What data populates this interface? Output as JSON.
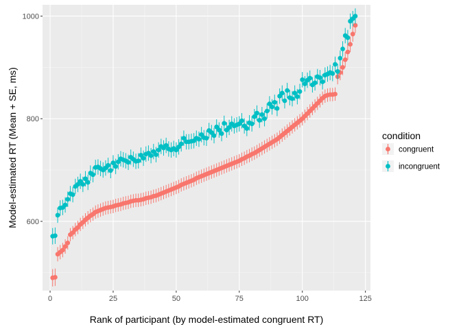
{
  "chart_data": {
    "type": "scatter",
    "xlabel": "Rank of participant (by model-estimated congruent RT)",
    "ylabel": "Model-estimated RT (Mean + SE, ms)",
    "xlim": [
      -3,
      127
    ],
    "ylim": [
      465,
      1022
    ],
    "x_ticks": [
      0,
      25,
      50,
      75,
      100,
      125
    ],
    "y_ticks": [
      600,
      800,
      1000
    ],
    "x_tick_labels": [
      "0",
      "25",
      "50",
      "75",
      "100",
      "125"
    ],
    "y_tick_labels": [
      "600",
      "800",
      "1000"
    ],
    "grid": true,
    "legend_position": "right",
    "legend_title": "condition",
    "colors": {
      "panel_bg": "#ebebeb",
      "grid_major": "#ffffff",
      "grid_minor": "#f5f5f5"
    },
    "series": [
      {
        "name": "congruent",
        "color": "#F8766D",
        "x": [
          1,
          2,
          3,
          4,
          5,
          6,
          7,
          8,
          9,
          10,
          11,
          12,
          13,
          14,
          15,
          16,
          17,
          18,
          19,
          20,
          21,
          22,
          23,
          24,
          25,
          26,
          27,
          28,
          29,
          30,
          31,
          32,
          33,
          34,
          35,
          36,
          37,
          38,
          39,
          40,
          41,
          42,
          43,
          44,
          45,
          46,
          47,
          48,
          49,
          50,
          51,
          52,
          53,
          54,
          55,
          56,
          57,
          58,
          59,
          60,
          61,
          62,
          63,
          64,
          65,
          66,
          67,
          68,
          69,
          70,
          71,
          72,
          73,
          74,
          75,
          76,
          77,
          78,
          79,
          80,
          81,
          82,
          83,
          84,
          85,
          86,
          87,
          88,
          89,
          90,
          91,
          92,
          93,
          94,
          95,
          96,
          97,
          98,
          99,
          100,
          101,
          102,
          103,
          104,
          105,
          106,
          107,
          108,
          109,
          110,
          111,
          112,
          113,
          114,
          115,
          116,
          117,
          118,
          119,
          120,
          121
        ],
        "y": [
          490,
          491,
          536,
          540,
          544,
          551,
          558,
          574,
          578,
          584,
          588,
          594,
          598,
          603,
          607,
          611,
          614,
          618,
          620,
          622,
          624,
          626,
          627,
          628,
          629,
          631,
          632,
          633,
          635,
          636,
          637,
          639,
          640,
          641,
          641,
          642,
          643,
          645,
          646,
          647,
          649,
          650,
          652,
          654,
          656,
          658,
          660,
          662,
          664,
          666,
          668,
          671,
          673,
          675,
          677,
          679,
          681,
          684,
          686,
          688,
          690,
          692,
          694,
          696,
          698,
          700,
          702,
          704,
          706,
          708,
          710,
          712,
          714,
          716,
          718,
          721,
          723,
          726,
          728,
          731,
          733,
          736,
          739,
          742,
          745,
          748,
          751,
          754,
          757,
          760,
          764,
          768,
          772,
          776,
          780,
          784,
          788,
          792,
          796,
          800,
          805,
          810,
          815,
          820,
          825,
          830,
          835,
          840,
          844,
          846,
          847,
          847,
          848,
          882,
          890,
          900,
          915,
          930,
          945,
          965,
          982
        ],
        "se": [
          17,
          17,
          14,
          14,
          14,
          14,
          13,
          13,
          13,
          13,
          13,
          13,
          13,
          13,
          13,
          13,
          13,
          13,
          13,
          13,
          13,
          13,
          13,
          13,
          13,
          13,
          13,
          13,
          13,
          13,
          13,
          13,
          13,
          13,
          13,
          13,
          13,
          13,
          13,
          13,
          13,
          13,
          13,
          13,
          13,
          13,
          13,
          13,
          13,
          13,
          13,
          13,
          13,
          13,
          13,
          13,
          13,
          13,
          13,
          13,
          13,
          13,
          13,
          13,
          13,
          13,
          13,
          13,
          13,
          13,
          13,
          13,
          13,
          13,
          13,
          13,
          13,
          13,
          13,
          13,
          13,
          13,
          13,
          13,
          13,
          13,
          13,
          13,
          13,
          13,
          13,
          13,
          13,
          13,
          13,
          13,
          13,
          13,
          13,
          13,
          13,
          13,
          13,
          13,
          13,
          13,
          13,
          13,
          13,
          13,
          13,
          13,
          13,
          15,
          15,
          15,
          15,
          15,
          15,
          15,
          15
        ]
      },
      {
        "name": "incongruent",
        "color": "#00BFC4",
        "x": [
          1,
          2,
          3,
          4,
          5,
          6,
          7,
          8,
          9,
          10,
          11,
          12,
          13,
          14,
          15,
          16,
          17,
          18,
          19,
          20,
          21,
          22,
          23,
          24,
          25,
          26,
          27,
          28,
          29,
          30,
          31,
          32,
          33,
          34,
          35,
          36,
          37,
          38,
          39,
          40,
          41,
          42,
          43,
          44,
          45,
          46,
          47,
          48,
          49,
          50,
          51,
          52,
          53,
          54,
          55,
          56,
          57,
          58,
          59,
          60,
          61,
          62,
          63,
          64,
          65,
          66,
          67,
          68,
          69,
          70,
          71,
          72,
          73,
          74,
          75,
          76,
          77,
          78,
          79,
          80,
          81,
          82,
          83,
          84,
          85,
          86,
          87,
          88,
          89,
          90,
          91,
          92,
          93,
          94,
          95,
          96,
          97,
          98,
          99,
          100,
          101,
          102,
          103,
          104,
          105,
          106,
          107,
          108,
          109,
          110,
          111,
          112,
          113,
          114,
          115,
          116,
          117,
          118,
          119,
          120,
          121
        ],
        "y": [
          571,
          572,
          612,
          626,
          627,
          632,
          643,
          654,
          652,
          668,
          672,
          678,
          672,
          683,
          676,
          694,
          691,
          705,
          706,
          703,
          700,
          704,
          709,
          699,
          714,
          707,
          716,
          722,
          720,
          718,
          715,
          725,
          721,
          717,
          718,
          729,
          723,
          731,
          733,
          728,
          736,
          730,
          739,
          746,
          743,
          748,
          741,
          739,
          742,
          739,
          745,
          751,
          762,
          755,
          755,
          756,
          757,
          762,
          760,
          769,
          763,
          762,
          777,
          773,
          767,
          784,
          778,
          771,
          791,
          778,
          783,
          790,
          786,
          788,
          790,
          796,
          786,
          781,
          792,
          790,
          804,
          811,
          797,
          808,
          800,
          815,
          829,
          823,
          832,
          820,
          844,
          850,
          835,
          855,
          841,
          839,
          850,
          843,
          853,
          876,
          868,
          875,
          879,
          866,
          870,
          882,
          880,
          872,
          885,
          887,
          890,
          888,
          906,
          892,
          918,
          936,
          962,
          958,
          990,
          995,
          1000
        ],
        "se": [
          16,
          16,
          15,
          15,
          15,
          15,
          15,
          15,
          15,
          15,
          15,
          15,
          15,
          15,
          15,
          15,
          15,
          15,
          15,
          15,
          15,
          15,
          15,
          15,
          15,
          15,
          15,
          15,
          15,
          15,
          15,
          15,
          15,
          15,
          15,
          15,
          15,
          15,
          15,
          15,
          15,
          15,
          15,
          15,
          15,
          15,
          15,
          15,
          15,
          15,
          15,
          15,
          15,
          15,
          15,
          15,
          15,
          15,
          15,
          15,
          15,
          15,
          15,
          15,
          15,
          15,
          15,
          15,
          15,
          15,
          15,
          15,
          15,
          15,
          15,
          15,
          15,
          15,
          15,
          15,
          15,
          15,
          15,
          15,
          15,
          15,
          15,
          15,
          15,
          15,
          15,
          15,
          15,
          15,
          15,
          15,
          15,
          15,
          15,
          15,
          15,
          15,
          15,
          15,
          15,
          15,
          15,
          15,
          15,
          15,
          15,
          15,
          15,
          15,
          15,
          15,
          15,
          15,
          15,
          15,
          15
        ]
      }
    ]
  }
}
